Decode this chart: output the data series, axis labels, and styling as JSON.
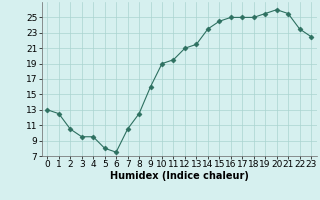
{
  "x": [
    0,
    1,
    2,
    3,
    4,
    5,
    6,
    7,
    8,
    9,
    10,
    11,
    12,
    13,
    14,
    15,
    16,
    17,
    18,
    19,
    20,
    21,
    22,
    23
  ],
  "y": [
    13,
    12.5,
    10.5,
    9.5,
    9.5,
    8,
    7.5,
    10.5,
    12.5,
    16,
    19,
    19.5,
    21,
    21.5,
    23.5,
    24.5,
    25,
    25,
    25,
    25.5,
    26,
    25.5,
    23.5,
    22.5
  ],
  "line_color": "#2d7060",
  "marker_color": "#2d7060",
  "bg_color": "#d6f0ef",
  "grid_color": "#aad4d0",
  "xlabel": "Humidex (Indice chaleur)",
  "xlim": [
    -0.5,
    23.5
  ],
  "ylim": [
    7,
    27
  ],
  "yticks": [
    7,
    9,
    11,
    13,
    15,
    17,
    19,
    21,
    23,
    25
  ],
  "xticks": [
    0,
    1,
    2,
    3,
    4,
    5,
    6,
    7,
    8,
    9,
    10,
    11,
    12,
    13,
    14,
    15,
    16,
    17,
    18,
    19,
    20,
    21,
    22,
    23
  ],
  "label_fontsize": 7,
  "tick_fontsize": 6.5
}
